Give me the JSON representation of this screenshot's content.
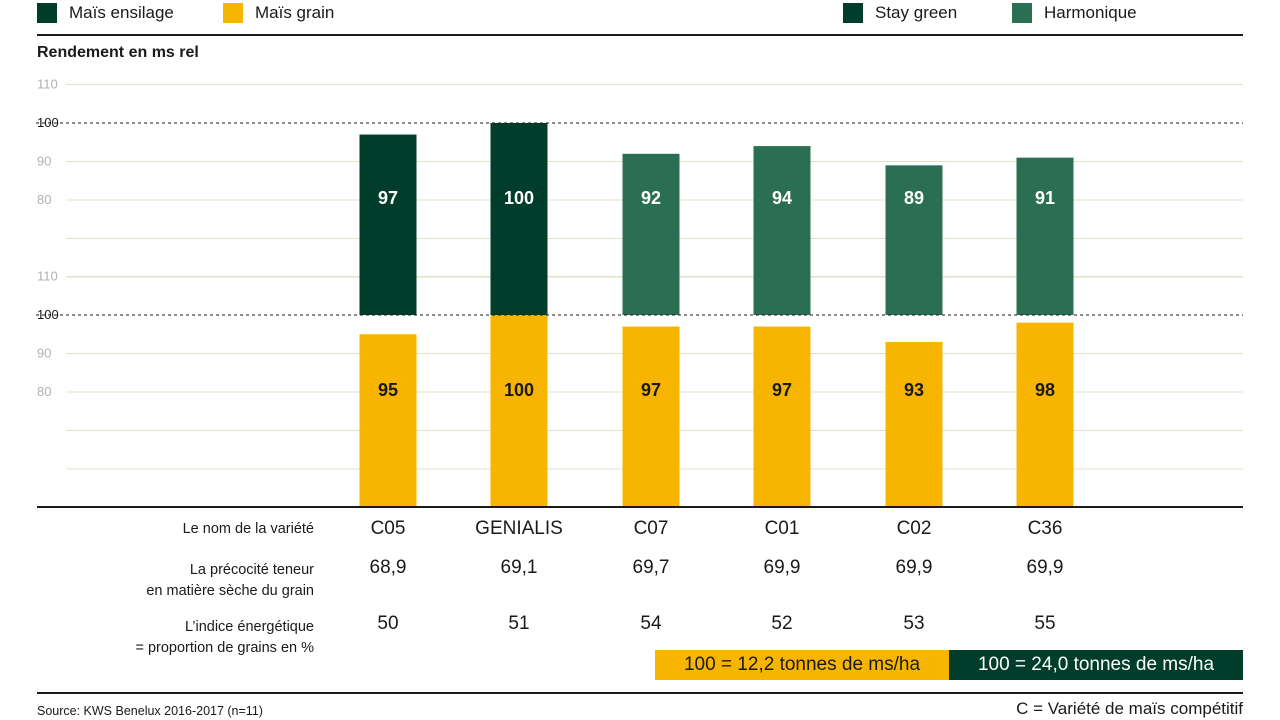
{
  "legend": {
    "mais_ensilage": {
      "label": "Maïs ensilage",
      "color": "#003d2b"
    },
    "mais_grain": {
      "label": "Maïs grain",
      "color": "#f7b500"
    },
    "stay_green": {
      "label": "Stay green",
      "color": "#003d2b"
    },
    "harmonique": {
      "label": "Harmonique",
      "color": "#2a6f53"
    }
  },
  "chart_data": {
    "type": "bar",
    "title": "Rendement en ms rel",
    "categories": [
      "C05",
      "GENIALIS",
      "C07",
      "C01",
      "C02",
      "C36"
    ],
    "upper_panel": {
      "name": "Maïs ensilage",
      "ylim": [
        70,
        110
      ],
      "yticks": [
        80,
        90,
        100,
        110
      ],
      "reference_line": 100,
      "values": [
        97,
        100,
        92,
        94,
        89,
        91
      ],
      "colors": [
        "#003d2b",
        "#003d2b",
        "#2a6f53",
        "#2a6f53",
        "#2a6f53",
        "#2a6f53"
      ]
    },
    "lower_panel": {
      "name": "Maïs grain",
      "ylim": [
        70,
        110
      ],
      "yticks": [
        80,
        90,
        100,
        110
      ],
      "reference_line": 100,
      "values": [
        95,
        100,
        97,
        97,
        93,
        98
      ],
      "color": "#f7b500"
    }
  },
  "table": {
    "row_labels": {
      "variety": "Le nom de la variété",
      "precocity": "La précocité teneur\nen matière sèche du grain",
      "energy": "L’indice énergétique\n= proportion de grains en %"
    },
    "varieties": [
      "C05",
      "GENIALIS",
      "C07",
      "C01",
      "C02",
      "C36"
    ],
    "precocity": [
      "68,9",
      "69,1",
      "69,7",
      "69,9",
      "69,9",
      "69,9"
    ],
    "energy": [
      "50",
      "51",
      "54",
      "52",
      "53",
      "55"
    ]
  },
  "scale": {
    "grain": {
      "label": "100 = 12,2 tonnes de ms/ha",
      "color": "#f7b500",
      "text_color": "#1a1a1a"
    },
    "silage": {
      "label": "100 = 24,0 tonnes de ms/ha",
      "color": "#003d2b",
      "text_color": "#ffffff"
    }
  },
  "source": "Source: KWS Benelux 2016-2017 (n=11)",
  "footnote": "C = Variété de maïs compétitif"
}
